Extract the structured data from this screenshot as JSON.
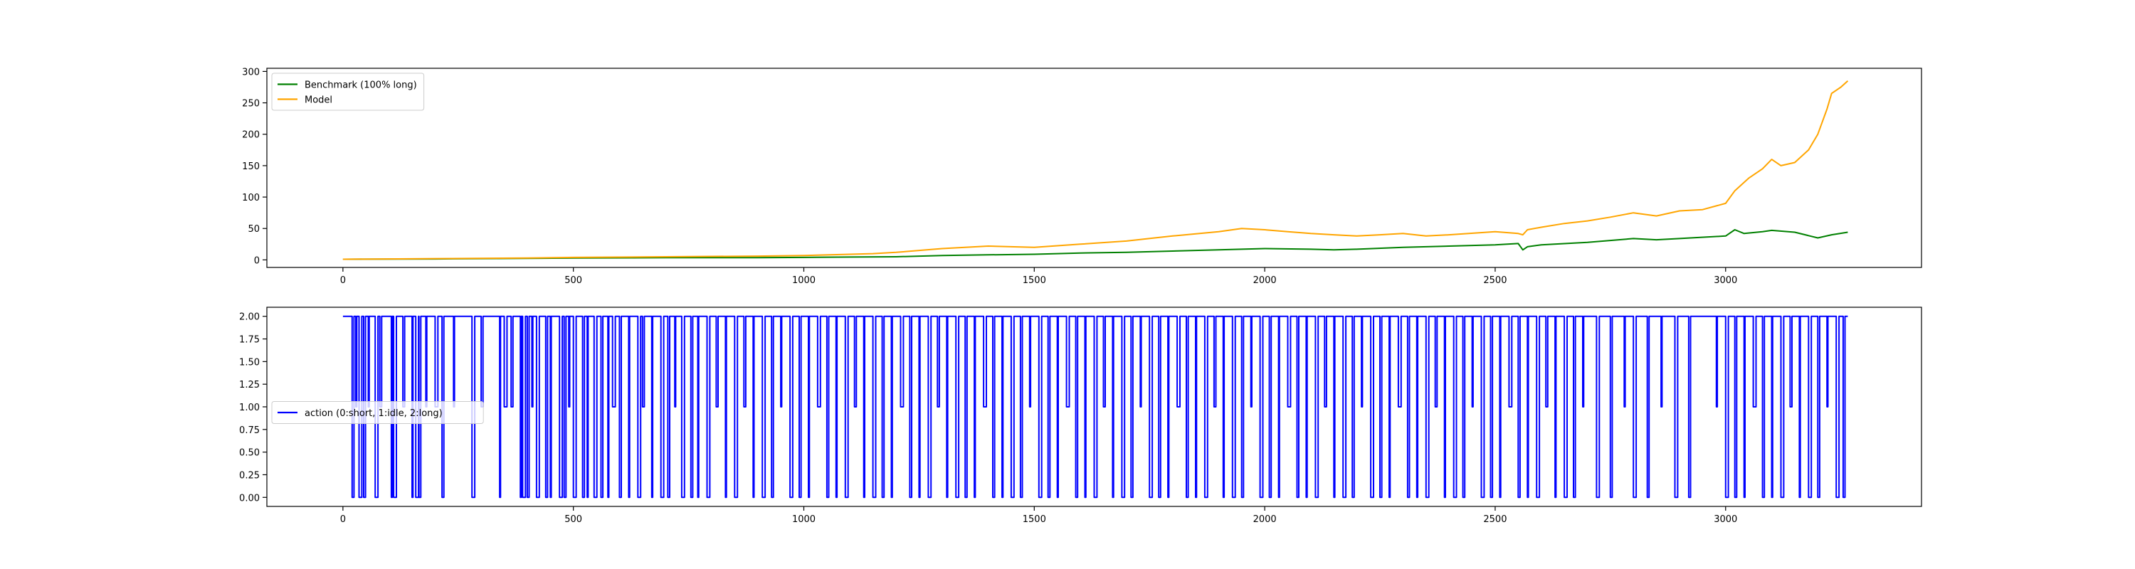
{
  "chart_data": [
    {
      "type": "line",
      "title": "",
      "xlabel": "",
      "ylabel": "",
      "xlim": [
        -165,
        3425
      ],
      "ylim": [
        -12,
        305
      ],
      "xticks": [
        0,
        500,
        1000,
        1500,
        2000,
        2500,
        3000
      ],
      "yticks": [
        0,
        50,
        100,
        150,
        200,
        250,
        300
      ],
      "legend_position": "upper-left",
      "series": [
        {
          "name": "Benchmark (100% long)",
          "color": "#008000",
          "x": [
            0,
            200,
            400,
            500,
            700,
            900,
            1000,
            1100,
            1200,
            1300,
            1400,
            1500,
            1600,
            1700,
            1800,
            1900,
            2000,
            2100,
            2150,
            2200,
            2300,
            2400,
            2500,
            2550,
            2560,
            2570,
            2600,
            2700,
            2800,
            2850,
            2900,
            3000,
            3020,
            3040,
            3080,
            3100,
            3150,
            3200,
            3230,
            3265
          ],
          "y": [
            1,
            1.5,
            2.5,
            3,
            3.5,
            3.5,
            4,
            4.5,
            5,
            7,
            8,
            9,
            11,
            12,
            14,
            16,
            18,
            17,
            16,
            17,
            20,
            22,
            24,
            26,
            16,
            21,
            24,
            28,
            34,
            32,
            34,
            38,
            48,
            42,
            45,
            47,
            44,
            35,
            40,
            44
          ]
        },
        {
          "name": "Model",
          "color": "#ffa500",
          "x": [
            0,
            200,
            400,
            500,
            700,
            900,
            1000,
            1100,
            1150,
            1200,
            1300,
            1400,
            1500,
            1600,
            1700,
            1800,
            1900,
            1950,
            2000,
            2050,
            2100,
            2150,
            2200,
            2250,
            2300,
            2350,
            2400,
            2500,
            2550,
            2560,
            2570,
            2600,
            2650,
            2700,
            2750,
            2800,
            2850,
            2900,
            2950,
            3000,
            3020,
            3050,
            3080,
            3100,
            3120,
            3150,
            3180,
            3200,
            3220,
            3230,
            3240,
            3250,
            3265
          ],
          "y": [
            1,
            2,
            3,
            4,
            5,
            6,
            7,
            9,
            10,
            12,
            18,
            22,
            20,
            25,
            30,
            38,
            45,
            50,
            48,
            45,
            42,
            40,
            38,
            40,
            42,
            38,
            40,
            45,
            42,
            40,
            48,
            52,
            58,
            62,
            68,
            75,
            70,
            78,
            80,
            90,
            110,
            130,
            145,
            160,
            150,
            155,
            175,
            200,
            240,
            265,
            270,
            275,
            285
          ]
        }
      ]
    },
    {
      "type": "line",
      "title": "",
      "xlabel": "",
      "ylabel": "",
      "xlim": [
        -165,
        3425
      ],
      "ylim": [
        -0.1,
        2.1
      ],
      "xticks": [
        0,
        500,
        1000,
        1500,
        2000,
        2500,
        3000
      ],
      "yticks": [
        0,
        0.25,
        0.5,
        0.75,
        1.0,
        1.25,
        1.5,
        1.75,
        2.0
      ],
      "ytick_labels": [
        "0.00",
        "0.25",
        "0.50",
        "0.75",
        "1.00",
        "1.25",
        "1.50",
        "1.75",
        "2.00"
      ],
      "legend_position": "center-left",
      "series": [
        {
          "name": "action (0:short, 1:idle, 2:long)",
          "color": "#0000ff",
          "length": 3265,
          "default_value": 2,
          "drops": [
            [
              20,
              0
            ],
            [
              28,
              1
            ],
            [
              35,
              0
            ],
            [
              45,
              0
            ],
            [
              55,
              1
            ],
            [
              70,
              0
            ],
            [
              80,
              1
            ],
            [
              105,
              0
            ],
            [
              110,
              0
            ],
            [
              130,
              1
            ],
            [
              150,
              0
            ],
            [
              158,
              0
            ],
            [
              165,
              0
            ],
            [
              180,
              1
            ],
            [
              200,
              1
            ],
            [
              215,
              0
            ],
            [
              240,
              1
            ],
            [
              280,
              0
            ],
            [
              300,
              1
            ],
            [
              340,
              0
            ],
            [
              350,
              1
            ],
            [
              365,
              1
            ],
            [
              385,
              0
            ],
            [
              390,
              0
            ],
            [
              400,
              0
            ],
            [
              410,
              1
            ],
            [
              420,
              0
            ],
            [
              440,
              0
            ],
            [
              450,
              0
            ],
            [
              470,
              0
            ],
            [
              480,
              0
            ],
            [
              490,
              1
            ],
            [
              500,
              0
            ],
            [
              520,
              0
            ],
            [
              530,
              0
            ],
            [
              545,
              0
            ],
            [
              560,
              0
            ],
            [
              575,
              0
            ],
            [
              585,
              1
            ],
            [
              600,
              0
            ],
            [
              620,
              0
            ],
            [
              640,
              0
            ],
            [
              650,
              1
            ],
            [
              670,
              0
            ],
            [
              690,
              0
            ],
            [
              705,
              0
            ],
            [
              720,
              1
            ],
            [
              735,
              0
            ],
            [
              755,
              0
            ],
            [
              770,
              0
            ],
            [
              790,
              0
            ],
            [
              810,
              1
            ],
            [
              830,
              0
            ],
            [
              850,
              0
            ],
            [
              870,
              1
            ],
            [
              890,
              0
            ],
            [
              910,
              0
            ],
            [
              930,
              0
            ],
            [
              950,
              1
            ],
            [
              970,
              0
            ],
            [
              990,
              0
            ],
            [
              1010,
              0
            ],
            [
              1030,
              1
            ],
            [
              1050,
              0
            ],
            [
              1070,
              0
            ],
            [
              1090,
              0
            ],
            [
              1110,
              1
            ],
            [
              1130,
              0
            ],
            [
              1150,
              0
            ],
            [
              1170,
              0
            ],
            [
              1190,
              0
            ],
            [
              1210,
              1
            ],
            [
              1230,
              0
            ],
            [
              1250,
              0
            ],
            [
              1270,
              0
            ],
            [
              1290,
              1
            ],
            [
              1310,
              0
            ],
            [
              1330,
              0
            ],
            [
              1350,
              0
            ],
            [
              1370,
              0
            ],
            [
              1390,
              1
            ],
            [
              1410,
              0
            ],
            [
              1430,
              0
            ],
            [
              1450,
              0
            ],
            [
              1470,
              0
            ],
            [
              1490,
              1
            ],
            [
              1510,
              0
            ],
            [
              1530,
              0
            ],
            [
              1550,
              0
            ],
            [
              1570,
              1
            ],
            [
              1590,
              0
            ],
            [
              1610,
              0
            ],
            [
              1630,
              0
            ],
            [
              1650,
              1
            ],
            [
              1670,
              0
            ],
            [
              1690,
              0
            ],
            [
              1710,
              0
            ],
            [
              1730,
              1
            ],
            [
              1750,
              0
            ],
            [
              1770,
              0
            ],
            [
              1790,
              0
            ],
            [
              1810,
              1
            ],
            [
              1830,
              0
            ],
            [
              1850,
              0
            ],
            [
              1870,
              0
            ],
            [
              1890,
              1
            ],
            [
              1910,
              0
            ],
            [
              1930,
              0
            ],
            [
              1950,
              0
            ],
            [
              1970,
              1
            ],
            [
              1990,
              0
            ],
            [
              2010,
              0
            ],
            [
              2030,
              0
            ],
            [
              2050,
              1
            ],
            [
              2070,
              0
            ],
            [
              2090,
              0
            ],
            [
              2110,
              0
            ],
            [
              2130,
              1
            ],
            [
              2150,
              0
            ],
            [
              2170,
              0
            ],
            [
              2190,
              0
            ],
            [
              2210,
              1
            ],
            [
              2230,
              0
            ],
            [
              2250,
              0
            ],
            [
              2270,
              0
            ],
            [
              2290,
              1
            ],
            [
              2310,
              0
            ],
            [
              2330,
              0
            ],
            [
              2350,
              0
            ],
            [
              2370,
              1
            ],
            [
              2390,
              0
            ],
            [
              2410,
              0
            ],
            [
              2430,
              0
            ],
            [
              2450,
              1
            ],
            [
              2470,
              0
            ],
            [
              2490,
              0
            ],
            [
              2510,
              0
            ],
            [
              2530,
              1
            ],
            [
              2550,
              0
            ],
            [
              2570,
              0
            ],
            [
              2590,
              0
            ],
            [
              2610,
              1
            ],
            [
              2630,
              0
            ],
            [
              2650,
              0
            ],
            [
              2670,
              0
            ],
            [
              2690,
              1
            ],
            [
              2720,
              0
            ],
            [
              2750,
              0
            ],
            [
              2780,
              1
            ],
            [
              2800,
              0
            ],
            [
              2830,
              0
            ],
            [
              2860,
              1
            ],
            [
              2890,
              0
            ],
            [
              2920,
              0
            ],
            [
              2980,
              1
            ],
            [
              3000,
              0
            ],
            [
              3020,
              0
            ],
            [
              3040,
              0
            ],
            [
              3060,
              1
            ],
            [
              3080,
              0
            ],
            [
              3100,
              0
            ],
            [
              3120,
              0
            ],
            [
              3140,
              1
            ],
            [
              3160,
              0
            ],
            [
              3180,
              0
            ],
            [
              3200,
              0
            ],
            [
              3220,
              1
            ],
            [
              3240,
              0
            ],
            [
              3255,
              0
            ]
          ]
        }
      ]
    }
  ]
}
